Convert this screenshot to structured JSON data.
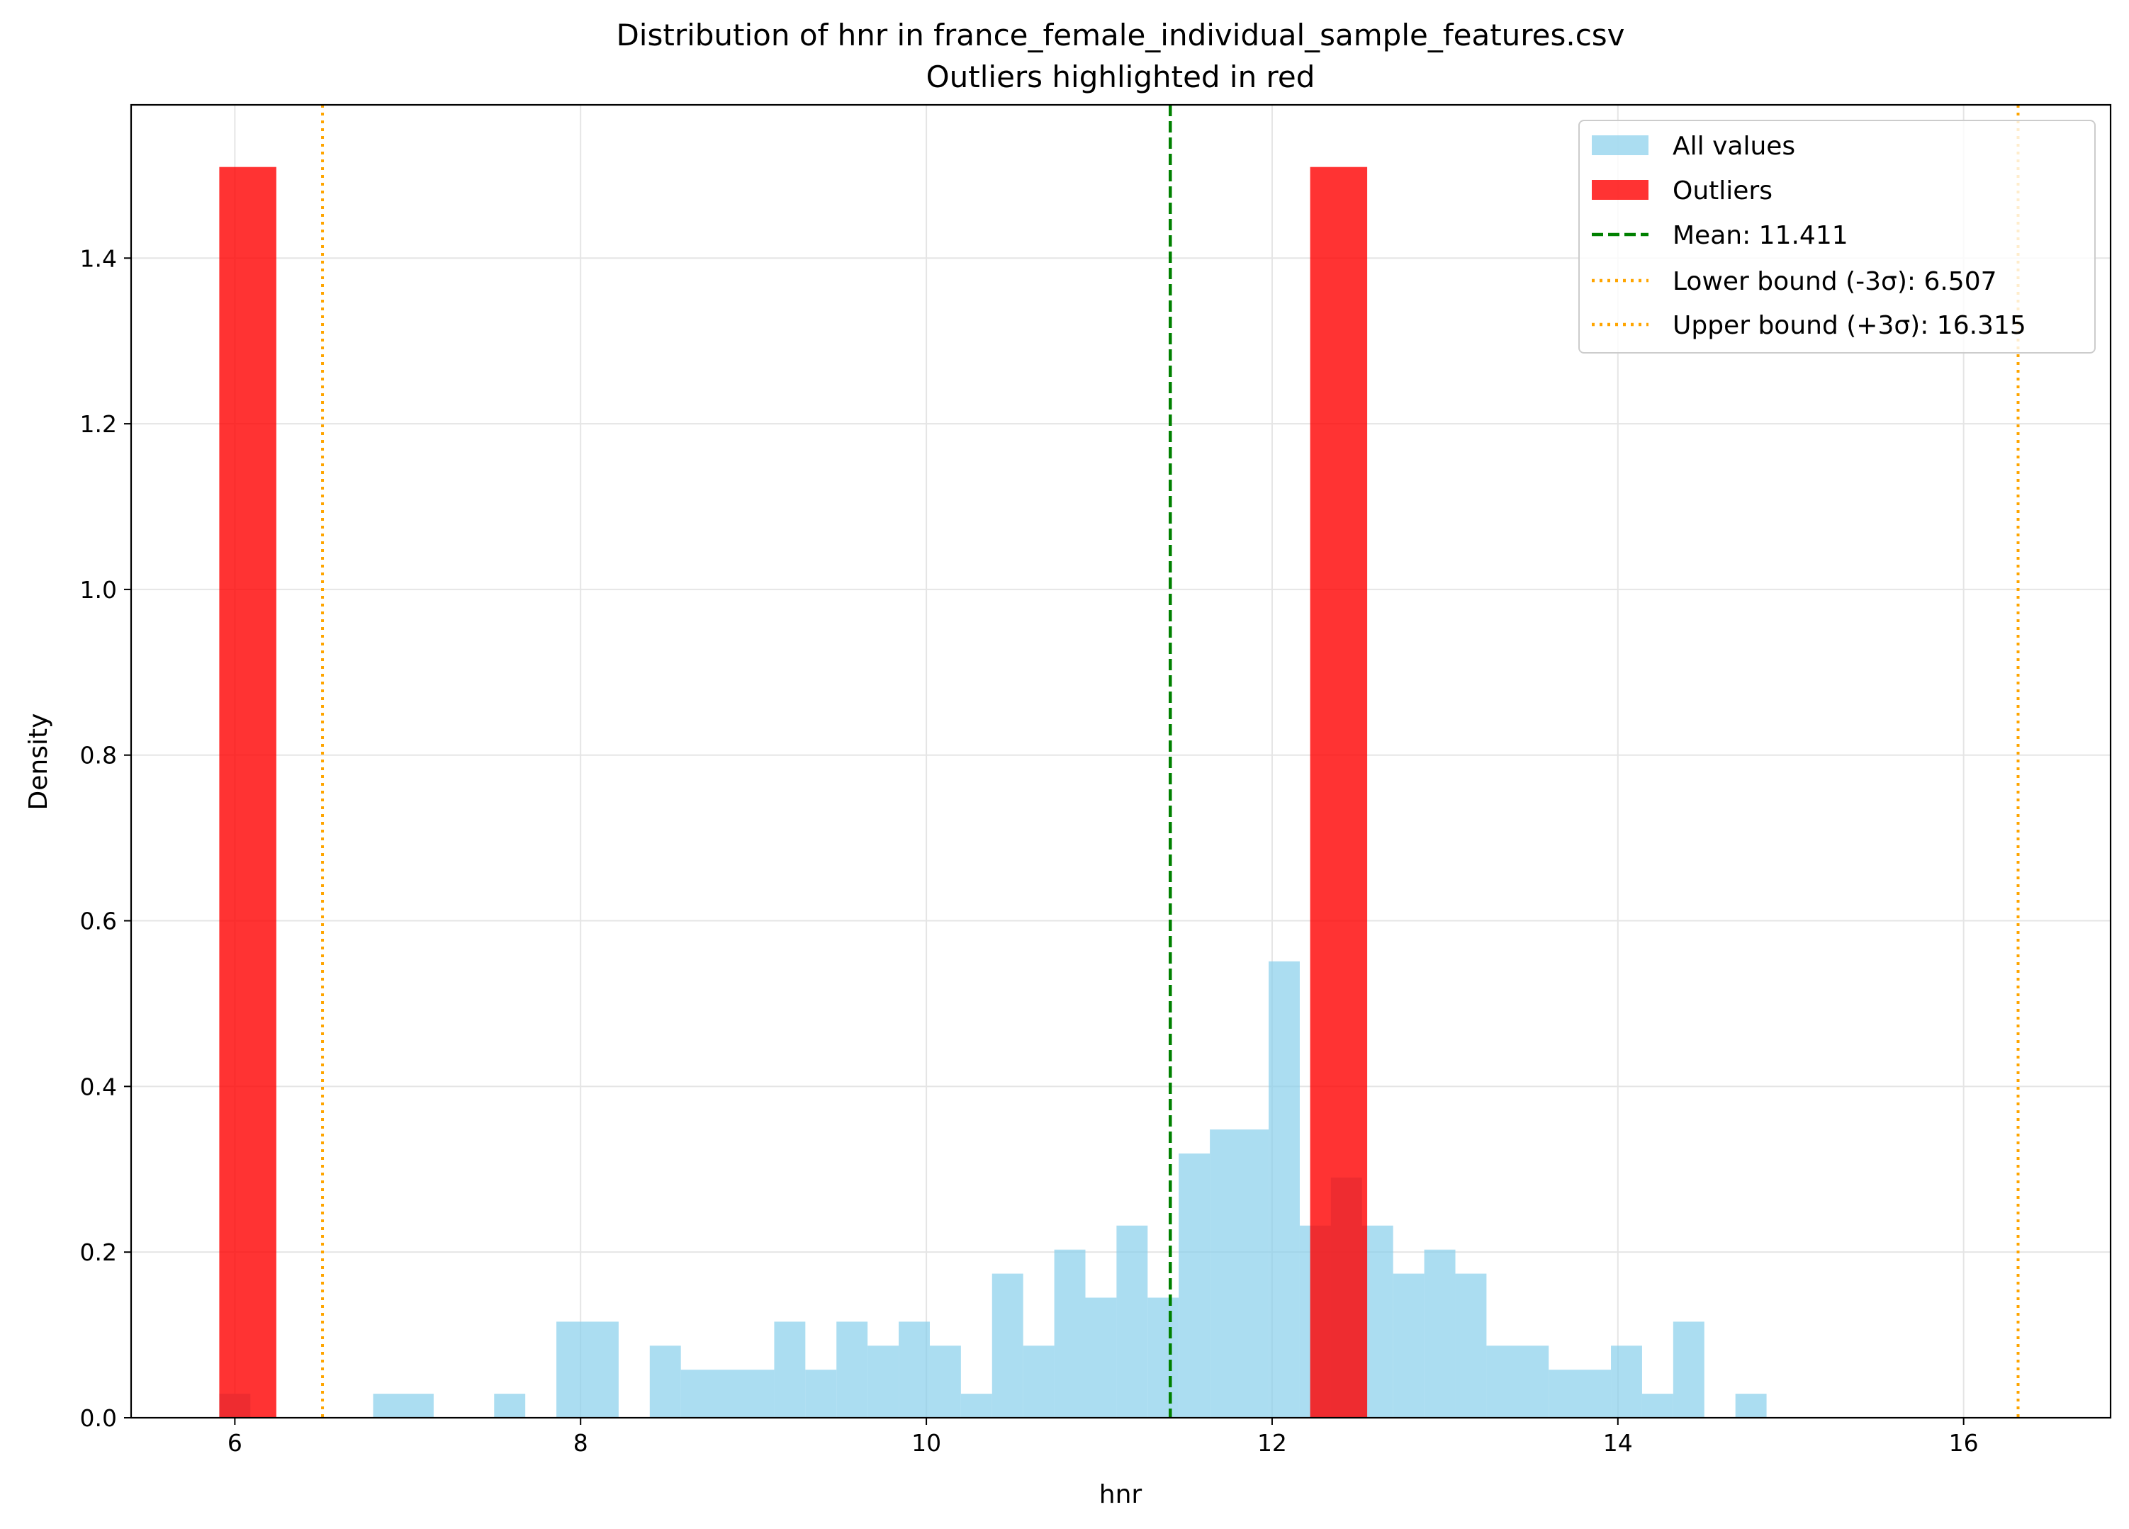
{
  "chart_data": {
    "type": "bar",
    "title": "Distribution of hnr in france_female_individual_sample_features.csv",
    "subtitle": "Outliers highlighted in red",
    "xlabel": "hnr",
    "ylabel": "Density",
    "xlim": [
      5.4,
      16.85
    ],
    "ylim": [
      0,
      1.585
    ],
    "x_ticks": [
      6,
      8,
      10,
      12,
      14,
      16
    ],
    "x_tick_labels": [
      "6",
      "8",
      "10",
      "12",
      "14",
      "16"
    ],
    "y_ticks": [
      0.0,
      0.2,
      0.4,
      0.6,
      0.8,
      1.0,
      1.2,
      1.4
    ],
    "y_tick_labels": [
      "0.0",
      "0.2",
      "0.4",
      "0.6",
      "0.8",
      "1.0",
      "1.2",
      "1.4"
    ],
    "grid": true,
    "legend_position": "top-right",
    "colors": {
      "all_values": "#87ceeb",
      "outliers": "#ff0000",
      "mean_line": "#008000",
      "bound_lines": "#ffa500",
      "grid": "#e5e5e5"
    },
    "series": [
      {
        "name": "All values",
        "style": "histogram",
        "bins": [
          {
            "x0": 5.91,
            "x1": 6.09,
            "value": 0.029
          },
          {
            "x0": 6.8,
            "x1": 7.15,
            "value": 0.029
          },
          {
            "x0": 7.5,
            "x1": 7.68,
            "value": 0.029
          },
          {
            "x0": 7.86,
            "x1": 8.22,
            "value": 0.116
          },
          {
            "x0": 8.4,
            "x1": 8.58,
            "value": 0.087
          },
          {
            "x0": 8.58,
            "x1": 9.12,
            "value": 0.058
          },
          {
            "x0": 9.12,
            "x1": 9.3,
            "value": 0.116
          },
          {
            "x0": 9.3,
            "x1": 9.48,
            "value": 0.058
          },
          {
            "x0": 9.48,
            "x1": 9.66,
            "value": 0.116
          },
          {
            "x0": 9.66,
            "x1": 9.84,
            "value": 0.087
          },
          {
            "x0": 9.84,
            "x1": 10.02,
            "value": 0.116
          },
          {
            "x0": 10.02,
            "x1": 10.2,
            "value": 0.087
          },
          {
            "x0": 10.2,
            "x1": 10.38,
            "value": 0.029
          },
          {
            "x0": 10.38,
            "x1": 10.56,
            "value": 0.174
          },
          {
            "x0": 10.56,
            "x1": 10.74,
            "value": 0.087
          },
          {
            "x0": 10.74,
            "x1": 10.92,
            "value": 0.203
          },
          {
            "x0": 10.92,
            "x1": 11.1,
            "value": 0.145
          },
          {
            "x0": 11.1,
            "x1": 11.28,
            "value": 0.232
          },
          {
            "x0": 11.28,
            "x1": 11.46,
            "value": 0.145
          },
          {
            "x0": 11.46,
            "x1": 11.64,
            "value": 0.319
          },
          {
            "x0": 11.64,
            "x1": 11.98,
            "value": 0.348
          },
          {
            "x0": 11.98,
            "x1": 12.16,
            "value": 0.551
          },
          {
            "x0": 12.16,
            "x1": 12.34,
            "value": 0.232
          },
          {
            "x0": 12.34,
            "x1": 12.52,
            "value": 0.29
          },
          {
            "x0": 12.52,
            "x1": 12.7,
            "value": 0.232
          },
          {
            "x0": 12.7,
            "x1": 12.88,
            "value": 0.174
          },
          {
            "x0": 12.88,
            "x1": 13.06,
            "value": 0.203
          },
          {
            "x0": 13.06,
            "x1": 13.24,
            "value": 0.174
          },
          {
            "x0": 13.24,
            "x1": 13.6,
            "value": 0.087
          },
          {
            "x0": 13.6,
            "x1": 13.96,
            "value": 0.058
          },
          {
            "x0": 13.96,
            "x1": 14.14,
            "value": 0.087
          },
          {
            "x0": 14.14,
            "x1": 14.32,
            "value": 0.029
          },
          {
            "x0": 14.32,
            "x1": 14.5,
            "value": 0.116
          },
          {
            "x0": 14.68,
            "x1": 14.86,
            "value": 0.029
          }
        ]
      },
      {
        "name": "Outliers",
        "style": "histogram",
        "bins": [
          {
            "x0": 5.91,
            "x1": 6.24,
            "value": 1.51
          },
          {
            "x0": 12.22,
            "x1": 12.55,
            "value": 1.51
          }
        ]
      }
    ],
    "reference_lines": [
      {
        "name": "Mean: 11.411",
        "x": 11.411,
        "style": "dashed"
      },
      {
        "name": "Lower bound (-3σ): 6.507",
        "x": 6.507,
        "style": "dotted"
      },
      {
        "name": "Upper bound (+3σ): 16.315",
        "x": 16.315,
        "style": "dotted"
      }
    ]
  }
}
